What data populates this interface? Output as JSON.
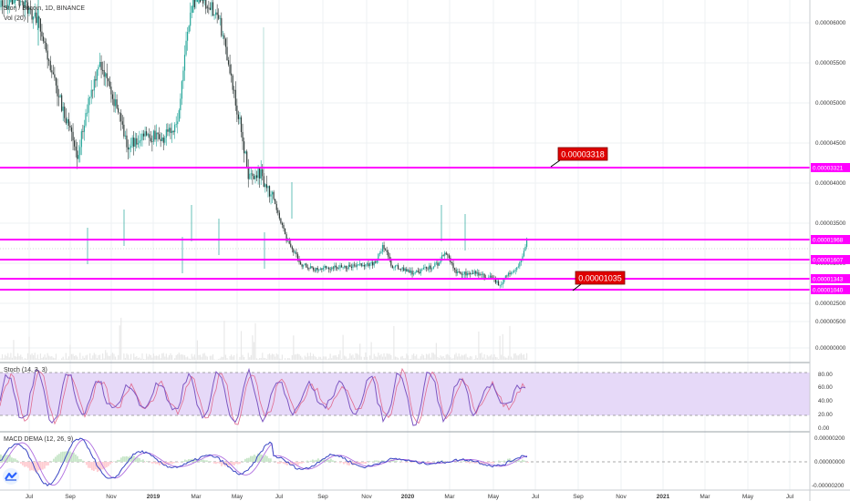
{
  "header": {
    "symbol": "Storj / Bitcoin, 1D, BINANCE",
    "volume_label": "Vol (20)"
  },
  "colors": {
    "line_magenta": "#ff00ff",
    "bull": "#26a69a",
    "bear": "#2f3a38",
    "callout_bg": "#e00000",
    "stoch_fill": "#d9c7f5",
    "stoch_line": "#7e57c2",
    "macd_line": "#3b47c4",
    "signal_line": "#9a5ad8",
    "hist_up": "#c8e6c9",
    "hist_down": "#ffcdd2",
    "volume": "#e8e8e8",
    "grid": "#eef0f3"
  },
  "price_axis": {
    "labels": [
      "0.00006000",
      "0.00005500",
      "0.00005000",
      "0.00004500",
      "0.00004000",
      "0.00003500",
      "0.00003000",
      "0.00002500",
      "0.00000500",
      "0.00000000"
    ]
  },
  "horizontal_lines": [
    {
      "tag": "0.00003321"
    },
    {
      "tag": "0.00001968"
    },
    {
      "tag": "0.00001607"
    },
    {
      "tag": "0.00001343"
    },
    {
      "tag": "0.00001040"
    }
  ],
  "callouts": [
    {
      "text": "0.00003318"
    },
    {
      "text": "0.00001035"
    }
  ],
  "stoch": {
    "label": "Stoch (14, 3, 3)",
    "axis": [
      "80.00",
      "60.00",
      "40.00",
      "20.00",
      "0.00"
    ]
  },
  "macd": {
    "label": "MACD DEMA (12, 26, 9)",
    "axis": [
      "0.00000200",
      "0.00000000",
      "-0.00000200"
    ]
  },
  "time_axis": [
    "Jul",
    "Sep",
    "Nov",
    "2019",
    "Mar",
    "May",
    "Jul",
    "Sep",
    "Nov",
    "2020",
    "Mar",
    "May",
    "Jul",
    "Sep",
    "Nov",
    "2021",
    "Mar",
    "May",
    "Jul"
  ],
  "logo": {
    "name": "tradingview-logo"
  }
}
